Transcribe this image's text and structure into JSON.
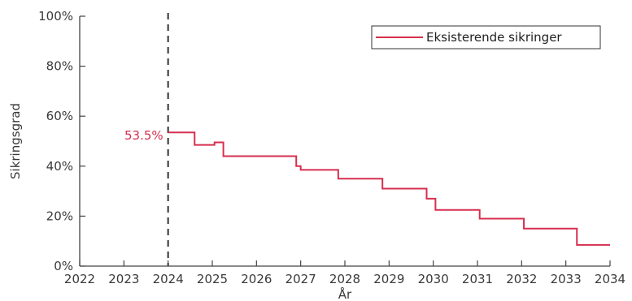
{
  "chart_data": {
    "type": "line",
    "step": true,
    "xlabel": "År",
    "ylabel": "Sikringsgrad",
    "xlim": [
      2022,
      2034
    ],
    "ylim": [
      0,
      100
    ],
    "x_ticks": [
      2022,
      2023,
      2024,
      2025,
      2026,
      2027,
      2028,
      2029,
      2030,
      2031,
      2032,
      2033,
      2034
    ],
    "x_tick_labels": [
      "2022",
      "2023",
      "2024",
      "2025",
      "2026",
      "2027",
      "2028",
      "2029",
      "2030",
      "2031",
      "2032",
      "2033",
      "2034"
    ],
    "y_ticks": [
      0,
      20,
      40,
      60,
      80,
      100
    ],
    "y_tick_labels": [
      "0%",
      "20%",
      "40%",
      "60%",
      "80%",
      "100%"
    ],
    "grid": false,
    "legend_position": "top-right",
    "vline": {
      "x": 2024,
      "style": "dashed"
    },
    "annotation": {
      "text": "53.5%",
      "x": 2024,
      "y": 53.5
    },
    "colors": {
      "series": "#d62f4f",
      "annotation": "#d62f4f",
      "vline": "#444444",
      "axis": "#444444"
    },
    "series": [
      {
        "name": "Eksisterende sikringer",
        "points": [
          [
            2024.0,
            53.5
          ],
          [
            2024.6,
            48.5
          ],
          [
            2025.05,
            49.5
          ],
          [
            2025.25,
            44
          ],
          [
            2026.9,
            40
          ],
          [
            2027.0,
            38.5
          ],
          [
            2027.85,
            35
          ],
          [
            2028.85,
            31
          ],
          [
            2029.85,
            27
          ],
          [
            2030.05,
            22.5
          ],
          [
            2031.05,
            19
          ],
          [
            2032.05,
            15
          ],
          [
            2033.25,
            8.5
          ],
          [
            2034.0,
            8.5
          ]
        ]
      }
    ]
  }
}
